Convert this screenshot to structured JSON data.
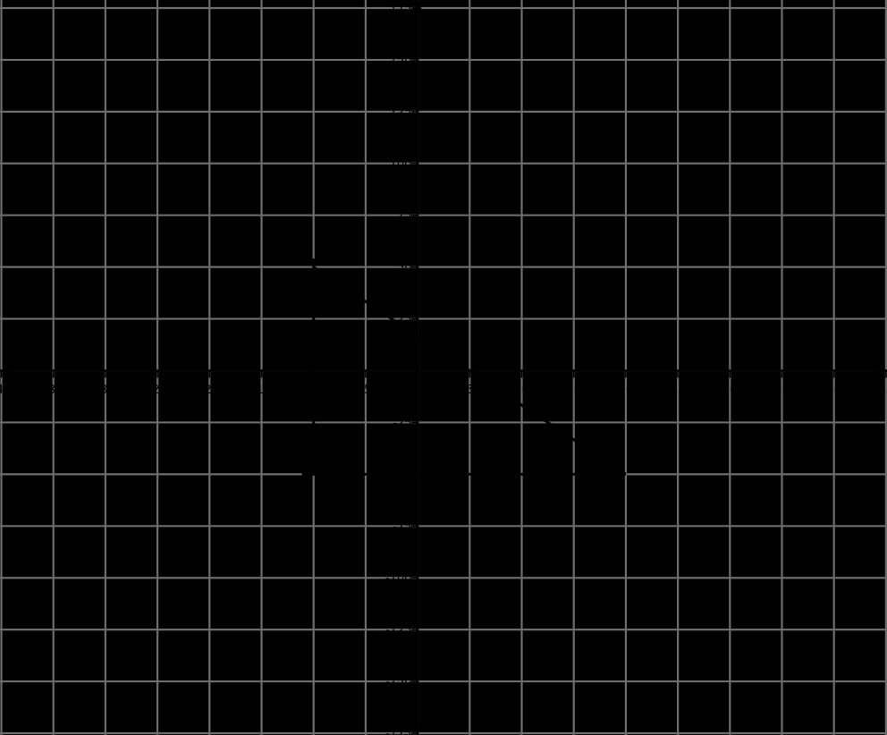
{
  "chart_data": {
    "type": "line",
    "title": "",
    "xlabel": "",
    "ylabel": "",
    "x_axis": {
      "min": -40,
      "max": 45,
      "tick_step": 5,
      "tick_labels": [
        "-40",
        "-35",
        "-30",
        "-25",
        "-20",
        "-15",
        "-10",
        "-5",
        "5",
        "10",
        "15",
        "20",
        "25",
        "30",
        "35",
        "40",
        "45"
      ],
      "tick_values": [
        -40,
        -35,
        -30,
        -25,
        -20,
        -15,
        -10,
        -5,
        5,
        10,
        15,
        20,
        25,
        30,
        35,
        40,
        45
      ]
    },
    "y_axis": {
      "min": -175,
      "max": 175,
      "tick_step": 25,
      "tick_labels": [
        "175",
        "150",
        "125",
        "100",
        "75",
        "50",
        "25",
        "-25",
        "-50",
        "-75",
        "-100",
        "-125",
        "-150",
        "-175"
      ],
      "tick_values": [
        175,
        150,
        125,
        100,
        75,
        50,
        25,
        -25,
        -50,
        -75,
        -100,
        -125,
        -150,
        -175
      ]
    },
    "grid": {
      "shown": true,
      "x_spacing": 5,
      "y_spacing": 25
    },
    "shape": "right-triangle",
    "vertices": [
      [
        -10,
        50
      ],
      [
        -10,
        -50
      ],
      [
        20,
        -50
      ]
    ],
    "series": [
      {
        "name": "vertical-leg",
        "points": [
          [
            -10,
            50
          ],
          [
            -10,
            -50
          ]
        ]
      },
      {
        "name": "horizontal-leg",
        "points": [
          [
            -10,
            -50
          ],
          [
            20,
            -50
          ]
        ]
      },
      {
        "name": "hypotenuse",
        "points": [
          [
            -10,
            50
          ],
          [
            20,
            -50
          ]
        ]
      }
    ],
    "legend": {
      "shown": false
    }
  },
  "colors": {
    "background": "#000000",
    "gridline": "#6d6d71",
    "axis": "#000000",
    "tick_label": "#000000",
    "figure": "#000000"
  }
}
